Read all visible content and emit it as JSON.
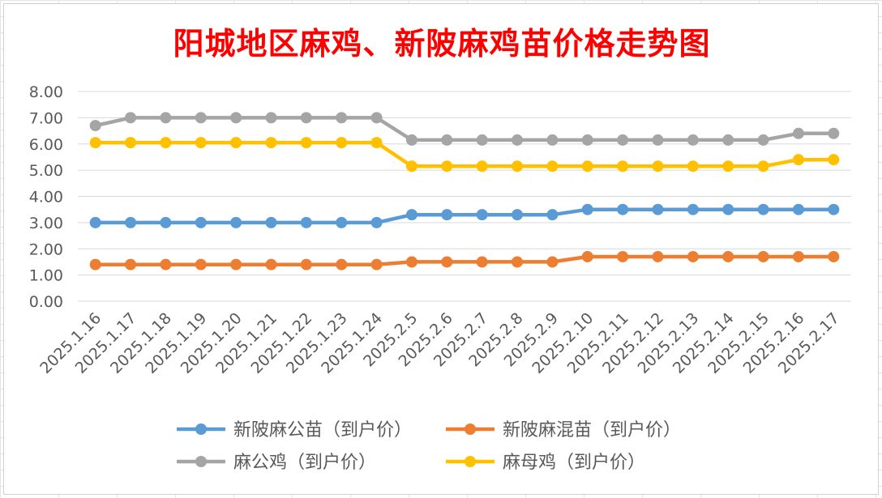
{
  "chart_data": {
    "type": "line",
    "title": "阳城地区麻鸡、新陂麻鸡苗价格走势图",
    "xlabel": "",
    "ylabel": "",
    "ylim": [
      0,
      8
    ],
    "yticks": [
      "0.00",
      "1.00",
      "2.00",
      "3.00",
      "4.00",
      "5.00",
      "6.00",
      "7.00",
      "8.00"
    ],
    "grid": "horizontal",
    "legend_position": "bottom",
    "categories": [
      "2025.1.16",
      "2025.1.17",
      "2025.1.18",
      "2025.1.19",
      "2025.1.20",
      "2025.1.21",
      "2025.1.22",
      "2025.1.23",
      "2025.1.24",
      "2025.2.5",
      "2025.2.6",
      "2025.2.7",
      "2025.2.8",
      "2025.2.9",
      "2025.2.10",
      "2025.2.11",
      "2025.2.12",
      "2025.2.13",
      "2025.2.14",
      "2025.2.15",
      "2025.2.16",
      "2025.2.17"
    ],
    "series": [
      {
        "name": "新陂麻公苗（到户价）",
        "color": "#5b9bd5",
        "values": [
          3.0,
          3.0,
          3.0,
          3.0,
          3.0,
          3.0,
          3.0,
          3.0,
          3.0,
          3.3,
          3.3,
          3.3,
          3.3,
          3.3,
          3.5,
          3.5,
          3.5,
          3.5,
          3.5,
          3.5,
          3.5,
          3.5
        ]
      },
      {
        "name": "新陂麻混苗（到户价）",
        "color": "#ed7d31",
        "values": [
          1.4,
          1.4,
          1.4,
          1.4,
          1.4,
          1.4,
          1.4,
          1.4,
          1.4,
          1.5,
          1.5,
          1.5,
          1.5,
          1.5,
          1.7,
          1.7,
          1.7,
          1.7,
          1.7,
          1.7,
          1.7,
          1.7
        ]
      },
      {
        "name": "麻公鸡（到户价）",
        "color": "#a5a5a5",
        "values": [
          6.7,
          7.0,
          7.0,
          7.0,
          7.0,
          7.0,
          7.0,
          7.0,
          7.0,
          6.15,
          6.15,
          6.15,
          6.15,
          6.15,
          6.15,
          6.15,
          6.15,
          6.15,
          6.15,
          6.15,
          6.4,
          6.4
        ]
      },
      {
        "name": "麻母鸡（到户价）",
        "color": "#ffc000",
        "values": [
          6.05,
          6.05,
          6.05,
          6.05,
          6.05,
          6.05,
          6.05,
          6.05,
          6.05,
          5.15,
          5.15,
          5.15,
          5.15,
          5.15,
          5.15,
          5.15,
          5.15,
          5.15,
          5.15,
          5.15,
          5.4,
          5.4
        ]
      }
    ]
  }
}
